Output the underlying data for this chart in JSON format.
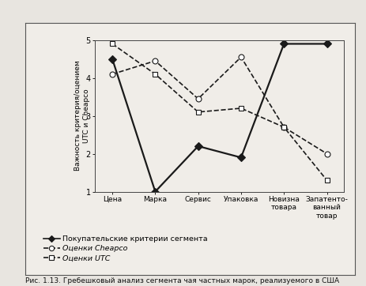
{
  "categories": [
    "Цена",
    "Марка",
    "Сервис",
    "Упаковка",
    "Новизна\nтовара",
    "Запатенто-\nванный\nтовар"
  ],
  "series": [
    {
      "label": "Покупательские критерии сегмента",
      "values": [
        4.5,
        1.0,
        2.2,
        1.9,
        4.9,
        4.9
      ],
      "marker": "D",
      "markersize": 5,
      "color": "#1a1a1a",
      "linewidth": 1.6,
      "linestyle": "-",
      "fillstyle": "full"
    },
    {
      "label": "Оценки Cheарсо",
      "values": [
        4.1,
        4.45,
        3.45,
        4.55,
        2.7,
        2.0
      ],
      "marker": "o",
      "markersize": 5,
      "color": "#1a1a1a",
      "linewidth": 1.2,
      "linestyle": "--",
      "fillstyle": "none"
    },
    {
      "label": "Оценки UTC",
      "values": [
        4.9,
        4.1,
        3.1,
        3.2,
        2.7,
        1.3
      ],
      "marker": "s",
      "markersize": 5,
      "color": "#1a1a1a",
      "linewidth": 1.2,
      "linestyle": "--",
      "fillstyle": "none"
    }
  ],
  "ylabel": "Важность критерия/оцением\nUTC и Cheарсо",
  "ylim": [
    1,
    5
  ],
  "yticks": [
    1,
    2,
    3,
    4,
    5
  ],
  "legend_italic": [
    false,
    true,
    true
  ],
  "legend_labels": [
    "Покупательские критерии сегмента",
    "Оценки Cheарсо",
    "Оценки UTC"
  ],
  "bg_color": "#f0ede8",
  "figure_bg": "#e8e5e0",
  "outer_box_color": "#c8c5c0",
  "caption": "Рис. 1.13. Гребешковый анализ сегмента чая частных марок, реализуемого в США"
}
